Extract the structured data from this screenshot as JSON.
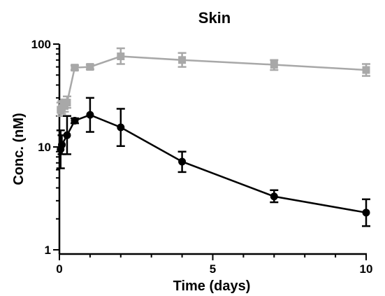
{
  "chart_data": {
    "type": "line",
    "title": "Skin",
    "xlabel": "Time (days)",
    "ylabel": "Conc. (nM)",
    "xlim": [
      0,
      10
    ],
    "ylim": [
      1,
      100
    ],
    "yscale": "log",
    "x_ticks": [
      "0",
      "5",
      "10"
    ],
    "y_ticks": [
      "1",
      "10",
      "100"
    ],
    "grid": false,
    "legend": "none",
    "series": [
      {
        "color": "#a8a8a8",
        "marker": "square",
        "points": [
          {
            "x": 0.04,
            "y": 23,
            "lo": 20,
            "hi": 27
          },
          {
            "x": 0.08,
            "y": 24,
            "lo": 21,
            "hi": 28
          },
          {
            "x": 0.17,
            "y": 25,
            "lo": 22,
            "hi": 29
          },
          {
            "x": 0.25,
            "y": 27,
            "lo": 24,
            "hi": 31
          },
          {
            "x": 0.5,
            "y": 59,
            "lo": 56,
            "hi": 62
          },
          {
            "x": 1,
            "y": 60,
            "lo": 57,
            "hi": 63
          },
          {
            "x": 2,
            "y": 76,
            "lo": 64,
            "hi": 91
          },
          {
            "x": 4,
            "y": 70,
            "lo": 60,
            "hi": 82
          },
          {
            "x": 7,
            "y": 63,
            "lo": 56,
            "hi": 70
          },
          {
            "x": 10,
            "y": 56,
            "lo": 49,
            "hi": 64
          }
        ]
      },
      {
        "color": "#000000",
        "marker": "circle",
        "points": [
          {
            "x": 0.04,
            "y": 9.5,
            "lo": 6.2,
            "hi": 14.5
          },
          {
            "x": 0.08,
            "y": 10.5,
            "lo": 8.5,
            "hi": 13
          },
          {
            "x": 0.25,
            "y": 13,
            "lo": 8.5,
            "hi": 20
          },
          {
            "x": 0.5,
            "y": 18,
            "lo": 17,
            "hi": 19
          },
          {
            "x": 1,
            "y": 20.5,
            "lo": 14,
            "hi": 30
          },
          {
            "x": 2,
            "y": 15.5,
            "lo": 10.2,
            "hi": 23.5
          },
          {
            "x": 4,
            "y": 7.2,
            "lo": 5.7,
            "hi": 9
          },
          {
            "x": 7,
            "y": 3.3,
            "lo": 2.9,
            "hi": 3.8
          },
          {
            "x": 10,
            "y": 2.3,
            "lo": 1.7,
            "hi": 3.1
          }
        ]
      }
    ]
  }
}
